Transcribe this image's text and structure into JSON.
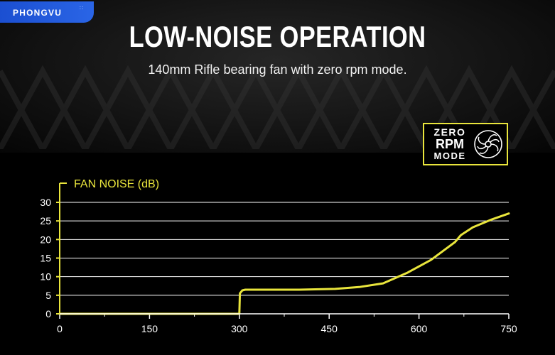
{
  "brand": {
    "name": "PHONGVU"
  },
  "header": {
    "title": "LOW-NOISE OPERATION",
    "subtitle": "140mm Rifle bearing fan with zero rpm mode."
  },
  "badge": {
    "line1": "ZERO",
    "line2": "RPM",
    "line3": "MODE",
    "icon": "fan-icon"
  },
  "colors": {
    "accent": "#e9e53c",
    "background": "#000000",
    "brand": "#2a65e6"
  },
  "chart_data": {
    "type": "line",
    "title": "FAN NOISE (dB)",
    "xlabel": "",
    "ylabel": "FAN NOISE (dB)",
    "xlim": [
      0,
      750
    ],
    "ylim": [
      0,
      30
    ],
    "x_ticks": [
      0,
      150,
      300,
      450,
      600,
      750
    ],
    "y_ticks": [
      0,
      5,
      10,
      15,
      20,
      25,
      30
    ],
    "grid": true,
    "series": [
      {
        "color": "#e9e53c",
        "points": [
          [
            0,
            0
          ],
          [
            300,
            0
          ],
          [
            301,
            5.5
          ],
          [
            305,
            6.3
          ],
          [
            310,
            6.5
          ],
          [
            400,
            6.5
          ],
          [
            460,
            6.7
          ],
          [
            500,
            7.2
          ],
          [
            540,
            8.2
          ],
          [
            580,
            11.0
          ],
          [
            620,
            14.5
          ],
          [
            660,
            19.3
          ],
          [
            670,
            21.2
          ],
          [
            690,
            23.3
          ],
          [
            720,
            25.3
          ],
          [
            750,
            27.0
          ]
        ]
      }
    ]
  }
}
